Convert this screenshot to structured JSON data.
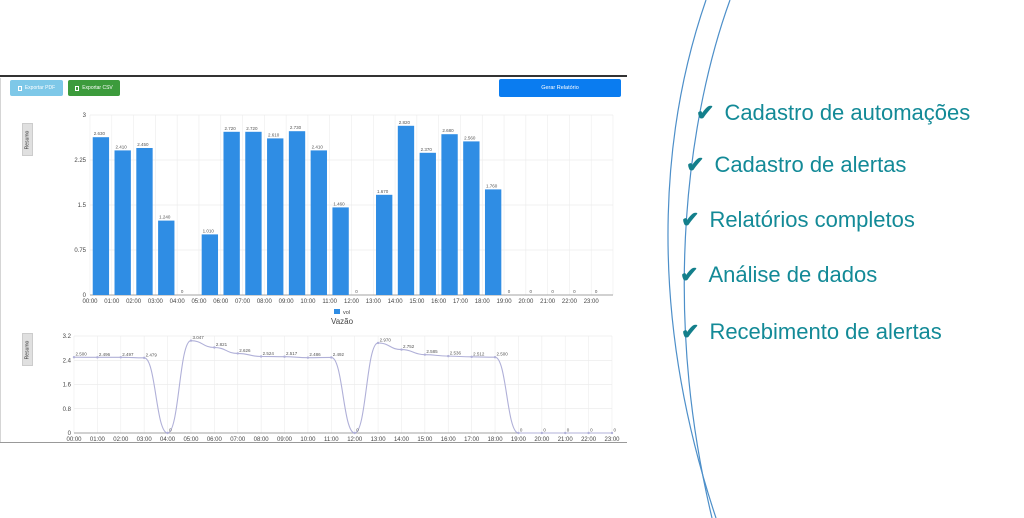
{
  "toolbar": {
    "export_pdf_label": "Exportar PDF",
    "export_csv_label": "Exportar CSV",
    "generate_label": "Gerar Relatório"
  },
  "tabs": {
    "summary_label": "Resumo"
  },
  "features": [
    "Cadastro de automações",
    "Cadastro de alertas",
    "Relatórios completos",
    "Análise de dados",
    "Recebimento de alertas"
  ],
  "colors": {
    "bar": "#2f8de4",
    "line": "#b0b0d8",
    "feature_text": "#138a97",
    "accent_curve": "#4d8fc9"
  },
  "chart_data": [
    {
      "type": "bar",
      "categories": [
        "00:00",
        "01:00",
        "02:00",
        "03:00",
        "04:00",
        "05:00",
        "06:00",
        "07:00",
        "08:00",
        "09:00",
        "10:00",
        "11:00",
        "12:00",
        "13:00",
        "14:00",
        "15:00",
        "16:00",
        "17:00",
        "18:00",
        "19:00",
        "20:00",
        "21:00",
        "22:00",
        "23:00"
      ],
      "series": [
        {
          "name": "vol",
          "values": [
            2.63,
            2.41,
            2.45,
            1.24,
            0,
            1.01,
            2.72,
            2.72,
            2.61,
            2.73,
            2.41,
            1.46,
            0,
            1.67,
            2.82,
            2.37,
            2.68,
            2.56,
            1.76,
            0,
            0,
            0,
            0,
            0
          ]
        }
      ],
      "value_labels": [
        "2.630",
        "2.410",
        "2.450",
        "1.240",
        "0",
        "1.010",
        "2.720",
        "2.720",
        "2.610",
        "2.730",
        "2.410",
        "1.460",
        "0",
        "1.670",
        "2.820",
        "2.370",
        "2.680",
        "2.560",
        "1.760",
        "0",
        "0",
        "0",
        "0",
        "0"
      ],
      "yticks": [
        "0",
        "0.75",
        "1.5",
        "2.25",
        "3"
      ],
      "ylim": [
        0,
        3
      ],
      "title": "Vazão",
      "legend": "top-center below axis"
    },
    {
      "type": "line",
      "categories": [
        "00:00",
        "01:00",
        "02:00",
        "03:00",
        "04:00",
        "05:00",
        "06:00",
        "07:00",
        "08:00",
        "09:00",
        "10:00",
        "11:00",
        "12:00",
        "13:00",
        "14:00",
        "15:00",
        "16:00",
        "17:00",
        "18:00",
        "19:00",
        "20:00",
        "21:00",
        "22:00",
        "23:00"
      ],
      "series": [
        {
          "values": [
            2.5,
            2.496,
            2.497,
            2.479,
            0,
            3.047,
            2.821,
            2.626,
            2.524,
            2.517,
            2.486,
            2.492,
            0,
            2.97,
            2.752,
            2.585,
            2.536,
            2.512,
            2.5,
            0,
            0,
            0,
            0,
            0
          ]
        }
      ],
      "value_labels": [
        "2.500",
        "2.496",
        "2.497",
        "2.479",
        "0",
        "3.047",
        "2.821",
        "2.626",
        "2.524",
        "2.517",
        "2.486",
        "2.492",
        "0",
        "2.970",
        "2.752",
        "2.585",
        "2.536",
        "2.512",
        "2.500",
        "0",
        "0",
        "0",
        "0",
        "0"
      ],
      "yticks": [
        "0",
        "0.8",
        "1.6",
        "2.4",
        "3.2"
      ],
      "ylim": [
        0,
        3.2
      ]
    }
  ]
}
